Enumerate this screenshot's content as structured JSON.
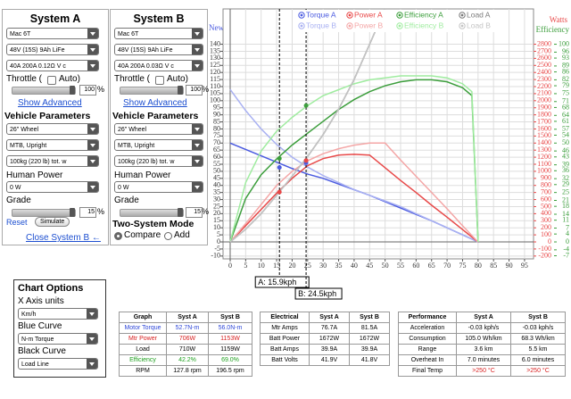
{
  "system_a": {
    "title": "System A",
    "motor": "Mac 6T",
    "battery": "48V (15S) 9Ah LiFe",
    "controller": "40A 200A 0.12Ω V c",
    "throttle_label": "Throttle (",
    "auto_label": "Auto)",
    "throttle_value": "100",
    "throttle_unit": "%",
    "show_advanced": "Show Advanced",
    "vehicle_parameters": "Vehicle Parameters",
    "wheel": "26\"  Wheel",
    "frame": "MTB, Upright",
    "weight": "100kg (220 lb) tot. w",
    "human_power_label": "Human Power",
    "human_power": "0 W",
    "grade_label": "Grade",
    "grade_value": "15",
    "grade_unit": "%",
    "reset": "Reset",
    "simulate": "Simulate",
    "close_b": "Close System B ←"
  },
  "system_b": {
    "title": "System B",
    "motor": "Mac 6T",
    "battery": "48V (15S) 9Ah LiFe",
    "controller": "40A 200A 0.03Ω V c",
    "throttle_label": "Throttle (",
    "auto_label": "Auto)",
    "throttle_value": "100",
    "throttle_unit": "%",
    "show_advanced": "Show Advanced",
    "vehicle_parameters": "Vehicle Parameters",
    "wheel": "26\"  Wheel",
    "frame": "MTB, Upright",
    "weight": "100kg (220 lb) tot. w",
    "human_power_label": "Human Power",
    "human_power": "0 W",
    "grade_label": "Grade",
    "grade_value": "15",
    "grade_unit": "%",
    "two_system_mode": "Two-System Mode",
    "compare": "Compare",
    "add": "Add"
  },
  "chart_options": {
    "title": "Chart Options",
    "x_axis_label": "X Axis units",
    "x_axis": "Km/h",
    "blue_label": "Blue Curve",
    "blue": "N-m Torque",
    "black_label": "Black Curve",
    "black": "Load Line"
  },
  "chart_data": {
    "type": "line",
    "ylabel": "Newton-Metres",
    "y2label": "Watts",
    "y3label": "% Efficiency",
    "x": [
      0,
      5,
      10,
      15,
      20,
      25,
      30,
      35,
      40,
      45,
      50,
      55,
      60,
      65,
      70,
      75,
      78,
      80
    ],
    "series": [
      {
        "name": "Torque A",
        "color": "#4a5ae0",
        "axis": "y",
        "values": [
          70,
          65.5,
          61,
          56.5,
          52,
          48,
          45,
          41,
          37,
          33,
          28.5,
          24,
          19.5,
          15,
          10,
          5,
          2,
          0
        ]
      },
      {
        "name": "Torque B",
        "color": "#a9b1f2",
        "axis": "y",
        "values": [
          108,
          93,
          80,
          69,
          60,
          53,
          47,
          42,
          37,
          33,
          29,
          25,
          20,
          15,
          10,
          5,
          2,
          0
        ]
      },
      {
        "name": "Power A",
        "color": "#e84848",
        "axis": "y2",
        "values": [
          0,
          230,
          460,
          690,
          900,
          1080,
          1180,
          1230,
          1240,
          1230,
          1050,
          870,
          700,
          520,
          350,
          175,
          70,
          0
        ]
      },
      {
        "name": "Power B",
        "color": "#f4a6a6",
        "axis": "y2",
        "values": [
          0,
          260,
          530,
          800,
          1000,
          1150,
          1250,
          1320,
          1370,
          1400,
          1400,
          1160,
          930,
          700,
          470,
          230,
          90,
          0
        ]
      },
      {
        "name": "Efficiency A",
        "color": "#3c9e3c",
        "axis": "y3",
        "values": [
          0,
          22,
          34,
          42,
          49,
          55,
          61,
          67,
          72,
          76,
          79,
          81,
          82,
          82,
          81,
          78,
          74,
          0
        ]
      },
      {
        "name": "Efficiency B",
        "color": "#9fec9f",
        "axis": "y3",
        "values": [
          0,
          30,
          46,
          56,
          63,
          69,
          74,
          77,
          80,
          82,
          83,
          84,
          84,
          84,
          83,
          80,
          76,
          0
        ]
      },
      {
        "name": "Load A",
        "color": "#7a7a7a",
        "axis": "y2",
        "values": [
          0,
          180,
          400,
          660,
          930,
          1210,
          1520,
          1880,
          2300,
          2800,
          3300,
          null,
          null,
          null,
          null,
          null,
          null,
          null
        ]
      },
      {
        "name": "Load B",
        "color": "#c4c4c4",
        "axis": "y2",
        "values": [
          0,
          180,
          400,
          660,
          930,
          1210,
          1520,
          1880,
          2300,
          2800,
          3300,
          null,
          null,
          null,
          null,
          null,
          null,
          null
        ]
      }
    ],
    "xlim": [
      -2.3,
      97.9
    ],
    "xticks": [
      0,
      5,
      10,
      15,
      20,
      25,
      30,
      35,
      40,
      45,
      50,
      55,
      60,
      65,
      70,
      75,
      80,
      85,
      90,
      95
    ],
    "ylim": [
      -12,
      165
    ],
    "yticks": [
      140,
      135,
      130,
      125,
      120,
      115,
      110,
      105,
      100,
      95,
      90,
      85,
      80,
      75,
      70,
      65,
      60,
      55,
      50,
      45,
      40,
      35,
      30,
      25,
      20,
      15,
      10,
      5,
      0,
      -5,
      -10
    ],
    "y2lim": [
      -240,
      3300
    ],
    "y2ticks": [
      2800,
      2700,
      2600,
      2500,
      2400,
      2300,
      2200,
      2100,
      2000,
      1900,
      1800,
      1700,
      1600,
      1500,
      1400,
      1300,
      1200,
      1100,
      1000,
      900,
      800,
      700,
      600,
      500,
      400,
      300,
      200,
      100,
      0,
      -100,
      -200
    ],
    "y3lim": [
      -8.57,
      117.86
    ],
    "y3ticks": [
      100,
      96,
      93,
      89,
      86,
      82,
      79,
      75,
      71,
      68,
      64,
      61,
      57,
      54,
      50,
      46,
      43,
      39,
      36,
      32,
      29,
      25,
      21,
      18,
      14,
      11,
      7,
      4,
      0,
      -4,
      -7
    ],
    "grid": true,
    "markers": [
      {
        "label": "A: 15.9kph",
        "x": 15.9,
        "torque": 52.7,
        "power": 706,
        "efficiency": 42.2
      },
      {
        "label": "B: 24.5kph",
        "x": 24.5,
        "torque": 56.0,
        "power": 1153,
        "efficiency": 69.0
      }
    ]
  },
  "tables": [
    {
      "headers": [
        "Graph",
        "Syst A",
        "Syst B"
      ],
      "rows": [
        [
          "Motor Torque",
          "52.7N-m",
          "56.0N-m"
        ],
        [
          "Mtr Power",
          "706W",
          "1153W"
        ],
        [
          "Load",
          "710W",
          "1159W"
        ],
        [
          "Efficiency",
          "42.2%",
          "69.0%"
        ],
        [
          "RPM",
          "127.8 rpm",
          "196.5 rpm"
        ]
      ]
    },
    {
      "headers": [
        "Electrical",
        "Syst A",
        "Syst B"
      ],
      "rows": [
        [
          "Mtr Amps",
          "76.7A",
          "81.5A"
        ],
        [
          "Batt Power",
          "1672W",
          "1672W"
        ],
        [
          "Batt Amps",
          "39.9A",
          "39.9A"
        ],
        [
          "Batt Volts",
          "41.9V",
          "41.8V"
        ]
      ]
    },
    {
      "headers": [
        "Performance",
        "Syst A",
        "Syst B"
      ],
      "rows": [
        [
          "Acceleration",
          "-0.03 kph/s",
          "-0.03 kph/s"
        ],
        [
          "Consumption",
          "105.0 Wh/km",
          "68.3 Wh/km"
        ],
        [
          "Range",
          "3.6 km",
          "5.5 km"
        ],
        [
          "Overheat In",
          "7.0 minutes",
          "6.0 minutes"
        ],
        [
          "Final Temp",
          ">250 °C",
          ">250 °C"
        ]
      ]
    }
  ]
}
